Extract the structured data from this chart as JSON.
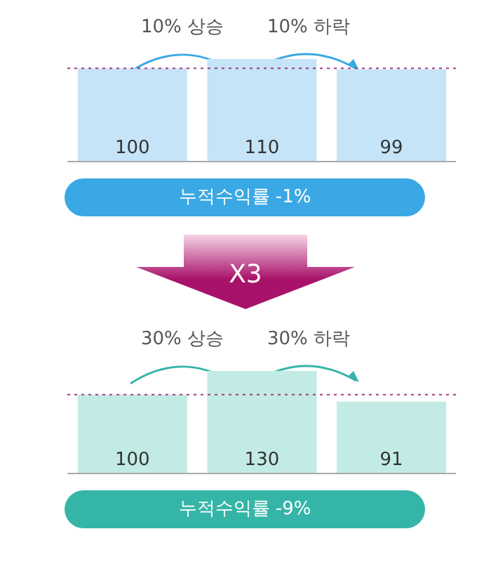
{
  "chart_data": [
    {
      "type": "bar",
      "categories": [
        null,
        null,
        null
      ],
      "values": [
        100,
        110,
        99
      ],
      "color": "#c5e4f7",
      "tick_labels": false,
      "data_labels": true,
      "ref_lines": [
        {
          "axis": "y",
          "value": 100,
          "color": "#a33a80",
          "line_style": "dotted"
        }
      ],
      "annotations": [
        "10% 상승",
        "10% 하락",
        "누적수익률 -1%",
        "X3"
      ]
    },
    {
      "type": "bar",
      "categories": [
        null,
        null,
        null
      ],
      "values": [
        100,
        130,
        91
      ],
      "color": "#c3ebe5",
      "tick_labels": false,
      "data_labels": true,
      "ref_lines": [
        {
          "axis": "y",
          "value": 100,
          "color": "#a33a80",
          "line_style": "dotted"
        }
      ],
      "annotations": [
        "30% 상승",
        "30% 하락",
        "누적수익률 -9%"
      ]
    }
  ]
}
